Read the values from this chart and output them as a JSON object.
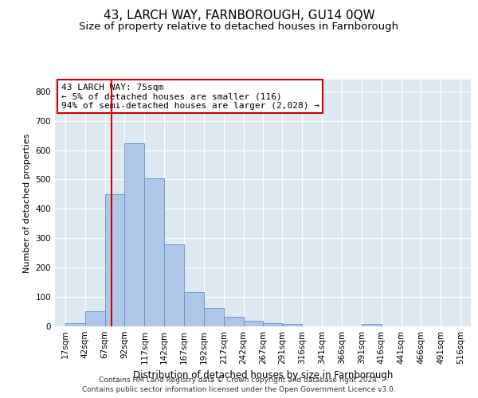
{
  "title": "43, LARCH WAY, FARNBOROUGH, GU14 0QW",
  "subtitle": "Size of property relative to detached houses in Farnborough",
  "xlabel": "Distribution of detached houses by size in Farnborough",
  "ylabel": "Number of detached properties",
  "footnote1": "Contains HM Land Registry data © Crown copyright and database right 2024.",
  "footnote2": "Contains public sector information licensed under the Open Government Licence v3.0.",
  "annotation_line1": "43 LARCH WAY: 75sqm",
  "annotation_line2": "← 5% of detached houses are smaller (116)",
  "annotation_line3": "94% of semi-detached houses are larger (2,028) →",
  "bar_color": "#aec6e8",
  "bar_edge_color": "#5a96c8",
  "red_line_x": 75,
  "bin_edges": [
    17,
    42,
    67,
    92,
    117,
    142,
    167,
    192,
    217,
    242,
    267,
    291,
    316,
    341,
    366,
    391,
    416,
    441,
    466,
    491,
    516
  ],
  "bar_heights": [
    10,
    52,
    450,
    622,
    503,
    278,
    116,
    62,
    33,
    18,
    10,
    8,
    0,
    0,
    0,
    7,
    0,
    0,
    0,
    0
  ],
  "ylim": [
    0,
    840
  ],
  "yticks": [
    0,
    100,
    200,
    300,
    400,
    500,
    600,
    700,
    800
  ],
  "xlim_left": 4,
  "xlim_right": 529,
  "background_color": "#dde8f0",
  "title_fontsize": 11,
  "subtitle_fontsize": 9.5,
  "annotation_box_edge_color": "#cc0000",
  "red_line_color": "#cc0000",
  "annotation_fontsize": 8,
  "axis_label_fontsize": 8,
  "tick_fontsize": 7.5,
  "footnote_fontsize": 6.5
}
